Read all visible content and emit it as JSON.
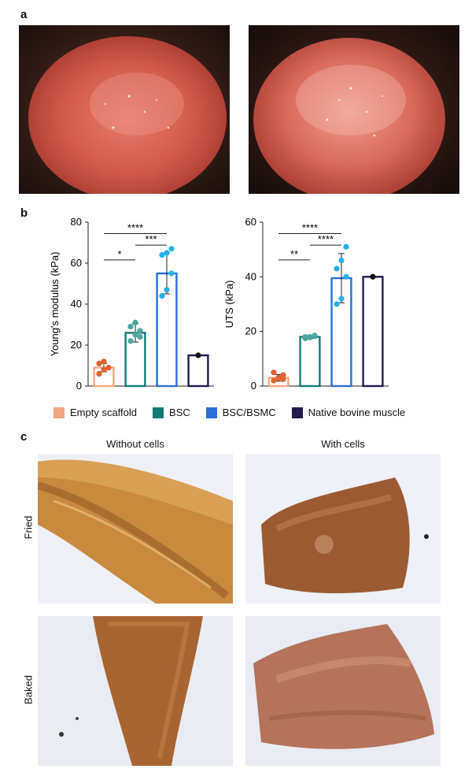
{
  "panels": {
    "a": "a",
    "b": "b",
    "c": "c"
  },
  "panel_c": {
    "columns": [
      "Without cells",
      "With cells"
    ],
    "rows": [
      "Fried",
      "Baked"
    ]
  },
  "legend": [
    {
      "label": "Empty scaffold",
      "color": "#f4a582"
    },
    {
      "label": "BSC",
      "color": "#137a74"
    },
    {
      "label": "BSC/BSMC",
      "color": "#2a6fdb"
    },
    {
      "label": "Native bovine muscle",
      "color": "#241b4d"
    }
  ],
  "chart_data": [
    {
      "type": "bar",
      "ylabel": "Young's modulus (kPa)",
      "ylim": [
        0,
        80
      ],
      "yticks": [
        0,
        20,
        40,
        60,
        80
      ],
      "categories": [
        "Empty scaffold",
        "BSC",
        "BSC/BSMC",
        "Native bovine muscle"
      ],
      "values": [
        9,
        26,
        55,
        15
      ],
      "errors": [
        2,
        4.5,
        10,
        0
      ],
      "points": [
        [
          6,
          8,
          9,
          11,
          12,
          9
        ],
        [
          22,
          25,
          27,
          29,
          31,
          24
        ],
        [
          44,
          47,
          55,
          64,
          65,
          67
        ],
        [
          15
        ]
      ],
      "significance": [
        {
          "from": 0,
          "to": 1,
          "label": "*"
        },
        {
          "from": 1,
          "to": 2,
          "label": "***"
        },
        {
          "from": 0,
          "to": 2,
          "label": "****"
        }
      ]
    },
    {
      "type": "bar",
      "ylabel": "UTS (kPa)",
      "ylim": [
        0,
        60
      ],
      "yticks": [
        0,
        20,
        40,
        60
      ],
      "categories": [
        "Empty scaffold",
        "BSC",
        "BSC/BSMC",
        "Native bovine muscle"
      ],
      "values": [
        3,
        18,
        39.5,
        40
      ],
      "errors": [
        1.2,
        0.6,
        9,
        0
      ],
      "points": [
        [
          2,
          3,
          4,
          5,
          3,
          2.5
        ],
        [
          17.5,
          18,
          18.5,
          18,
          17.8,
          18.2
        ],
        [
          30,
          32,
          40,
          43,
          46,
          51
        ],
        [
          40
        ]
      ],
      "significance": [
        {
          "from": 0,
          "to": 1,
          "label": "**"
        },
        {
          "from": 1,
          "to": 2,
          "label": "****"
        },
        {
          "from": 0,
          "to": 2,
          "label": "****"
        }
      ]
    }
  ]
}
